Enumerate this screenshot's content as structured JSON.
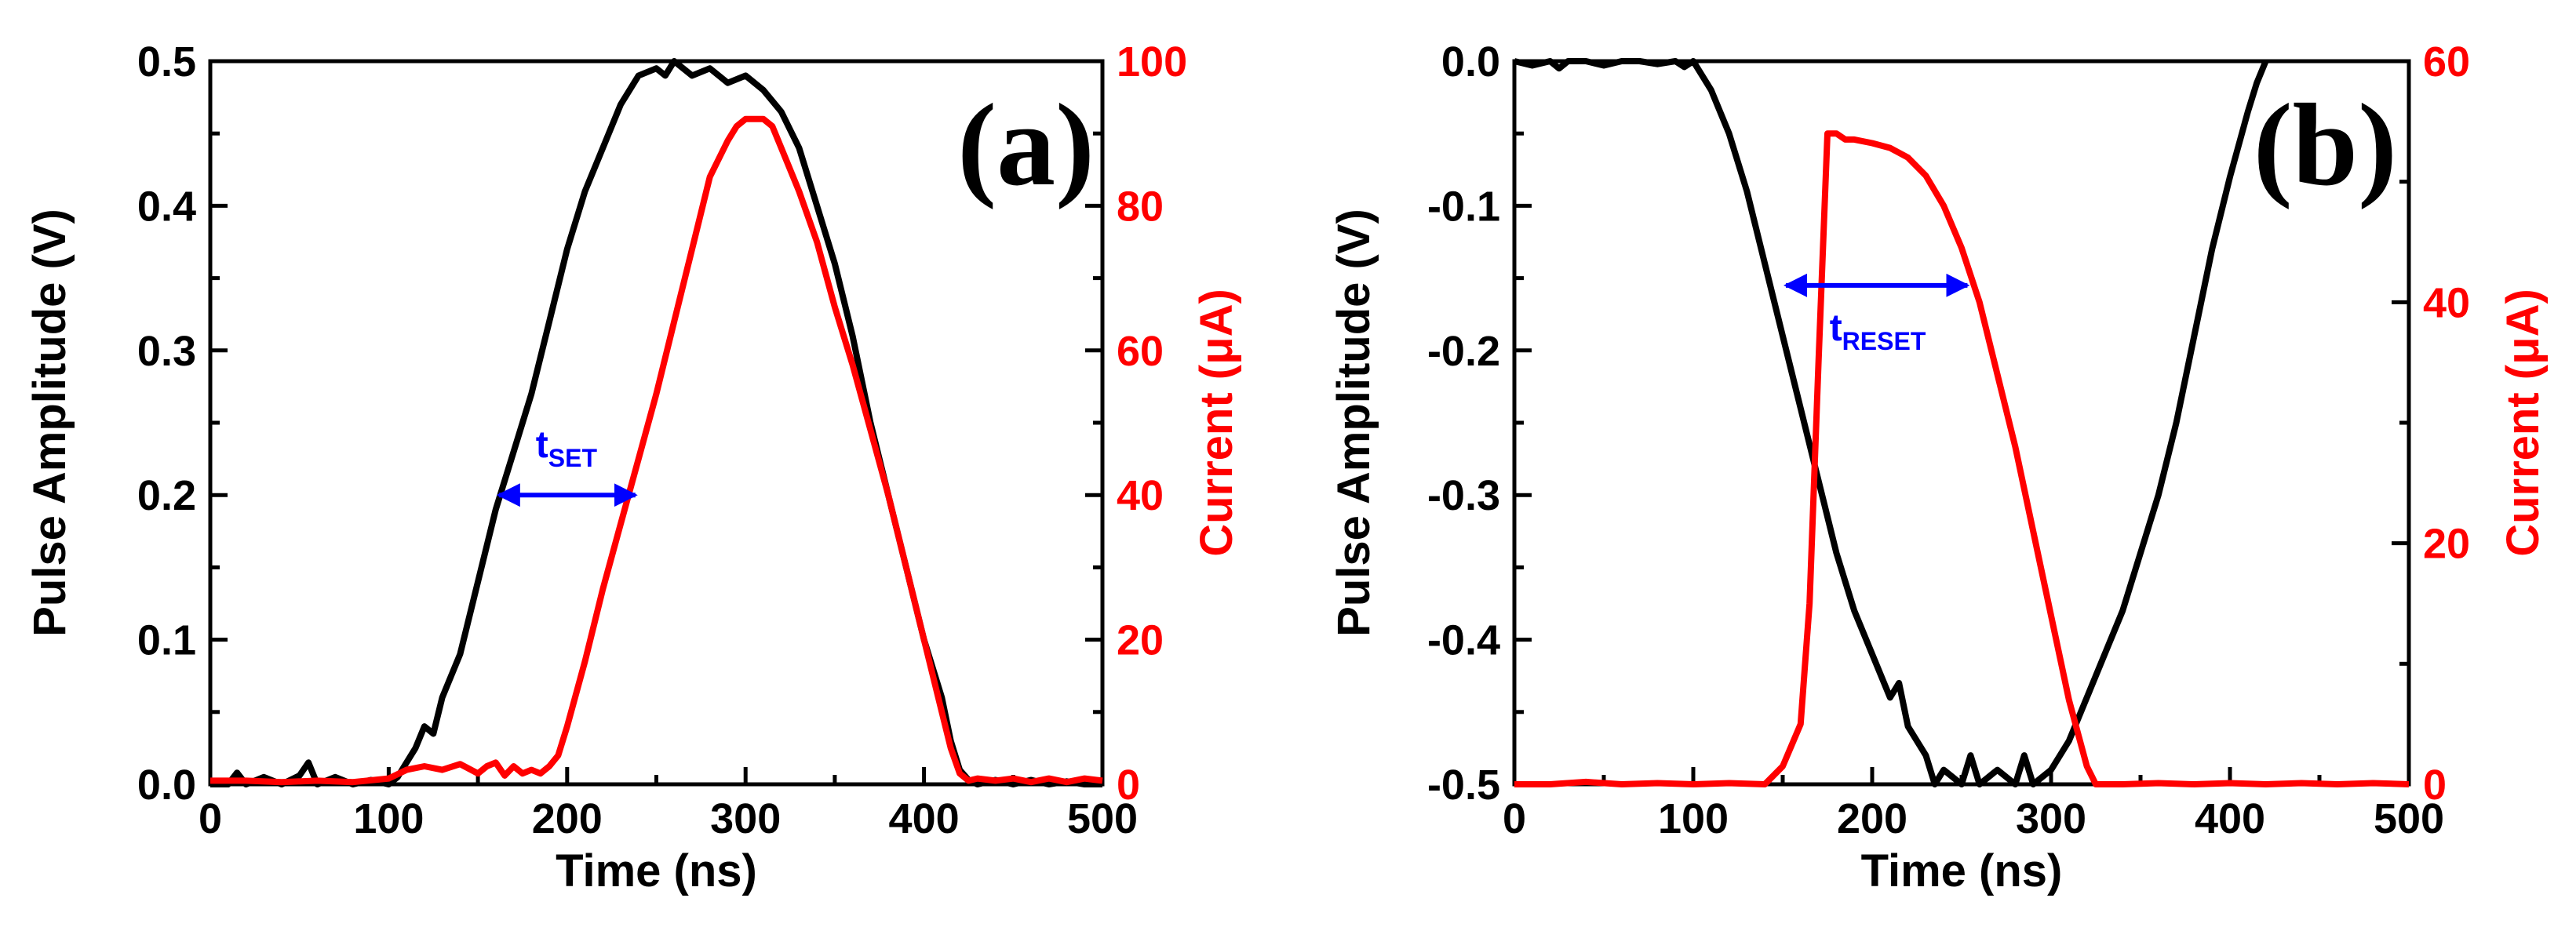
{
  "colors": {
    "voltage": "#000000",
    "current": "#ff0000",
    "annotation": "#0000ff",
    "axis": "#000000"
  },
  "chart_data": [
    {
      "type": "line",
      "panel": "(a)",
      "xlabel": "Time (ns)",
      "ylabel_left": "Pulse Amplitude (V)",
      "ylabel_right": "Current (μA)",
      "xlim": [
        0,
        500
      ],
      "ylim_left": [
        0,
        0.5
      ],
      "ylim_right": [
        0,
        100
      ],
      "x_ticks": [
        "0",
        "100",
        "200",
        "300",
        "400",
        "500"
      ],
      "y_left_ticks": [
        "0.0",
        "0.1",
        "0.2",
        "0.3",
        "0.4",
        "0.5"
      ],
      "y_right_ticks": [
        "0",
        "20",
        "40",
        "60",
        "80",
        "100"
      ],
      "annotation": {
        "text": "t",
        "sub": "SET",
        "x1": 160,
        "x2": 240,
        "y": 0.2
      },
      "series": [
        {
          "name": "Pulse Amplitude",
          "axis": "left",
          "x": [
            0,
            10,
            15,
            20,
            30,
            40,
            50,
            55,
            60,
            70,
            80,
            90,
            100,
            105,
            110,
            115,
            120,
            125,
            130,
            140,
            150,
            160,
            170,
            180,
            190,
            200,
            210,
            220,
            230,
            240,
            250,
            255,
            260,
            270,
            280,
            290,
            300,
            310,
            320,
            330,
            340,
            350,
            360,
            370,
            380,
            390,
            400,
            410,
            415,
            420,
            425,
            430,
            440,
            450,
            460,
            470,
            480,
            490,
            500
          ],
          "y": [
            0.0,
            0.0,
            0.008,
            0.0,
            0.005,
            0.0,
            0.006,
            0.015,
            0.0,
            0.005,
            0.0,
            0.003,
            0.0,
            0.005,
            0.015,
            0.025,
            0.04,
            0.035,
            0.06,
            0.09,
            0.14,
            0.19,
            0.23,
            0.27,
            0.32,
            0.37,
            0.41,
            0.44,
            0.47,
            0.49,
            0.495,
            0.49,
            0.5,
            0.49,
            0.495,
            0.485,
            0.49,
            0.48,
            0.465,
            0.44,
            0.4,
            0.36,
            0.31,
            0.25,
            0.2,
            0.15,
            0.1,
            0.06,
            0.03,
            0.01,
            0.003,
            0.0,
            0.003,
            0.0,
            0.003,
            0.0,
            0.002,
            0.0,
            0.0
          ]
        },
        {
          "name": "Current",
          "axis": "right",
          "x": [
            0,
            20,
            40,
            60,
            80,
            100,
            110,
            120,
            130,
            140,
            150,
            155,
            160,
            165,
            170,
            175,
            180,
            185,
            190,
            195,
            200,
            210,
            220,
            230,
            240,
            250,
            260,
            270,
            280,
            290,
            295,
            300,
            305,
            310,
            315,
            320,
            330,
            340,
            350,
            360,
            370,
            380,
            390,
            400,
            410,
            415,
            420,
            425,
            430,
            440,
            450,
            460,
            470,
            480,
            490,
            500
          ],
          "y": [
            0.5,
            0.5,
            0.3,
            0.5,
            0.3,
            0.8,
            2,
            2.5,
            2,
            2.8,
            1.5,
            2.5,
            3,
            1.2,
            2.5,
            1.5,
            2,
            1.5,
            2.5,
            4,
            8,
            17,
            27,
            36,
            45,
            54,
            64,
            74,
            84,
            89,
            91,
            92,
            92,
            92,
            91,
            88,
            82,
            75,
            66,
            58,
            49,
            40,
            30,
            20,
            10,
            5,
            1.5,
            0.5,
            0.8,
            0.5,
            0.8,
            0.3,
            0.8,
            0.3,
            0.8,
            0.5
          ]
        }
      ]
    },
    {
      "type": "line",
      "panel": "(b)",
      "xlabel": "Time (ns)",
      "ylabel_left": "Pulse Amplitude (V)",
      "ylabel_right": "Current (μA)",
      "xlim": [
        0,
        500
      ],
      "ylim_left": [
        -0.5,
        0.0
      ],
      "ylim_right": [
        0,
        60
      ],
      "x_ticks": [
        "0",
        "100",
        "200",
        "300",
        "400",
        "500"
      ],
      "y_left_ticks": [
        "-0.5",
        "-0.4",
        "-0.3",
        "-0.2",
        "-0.1",
        "0.0"
      ],
      "y_right_ticks": [
        "0",
        "20",
        "40",
        "60"
      ],
      "annotation": {
        "text": "t",
        "sub": "RESET",
        "x1": 150,
        "x2": 255,
        "y": -0.155
      },
      "series": [
        {
          "name": "Pulse Amplitude",
          "axis": "left",
          "x": [
            0,
            10,
            20,
            25,
            30,
            40,
            50,
            60,
            70,
            80,
            90,
            95,
            100,
            110,
            120,
            130,
            140,
            150,
            160,
            170,
            180,
            190,
            200,
            210,
            215,
            220,
            230,
            235,
            240,
            250,
            255,
            260,
            270,
            280,
            285,
            290,
            300,
            310,
            320,
            330,
            340,
            350,
            360,
            370,
            380,
            390,
            400,
            410,
            415,
            420
          ],
          "y": [
            0.0,
            -0.003,
            0.0,
            -0.005,
            0.0,
            0.0,
            -0.003,
            0.0,
            0.0,
            -0.002,
            0.0,
            -0.004,
            0.0,
            -0.02,
            -0.05,
            -0.09,
            -0.14,
            -0.19,
            -0.24,
            -0.29,
            -0.34,
            -0.38,
            -0.41,
            -0.44,
            -0.43,
            -0.46,
            -0.48,
            -0.5,
            -0.49,
            -0.5,
            -0.48,
            -0.5,
            -0.49,
            -0.5,
            -0.48,
            -0.5,
            -0.49,
            -0.47,
            -0.44,
            -0.41,
            -0.38,
            -0.34,
            -0.3,
            -0.25,
            -0.19,
            -0.13,
            -0.08,
            -0.035,
            -0.015,
            0.0
          ]
        },
        {
          "name": "Current",
          "axis": "right",
          "x": [
            0,
            20,
            40,
            60,
            80,
            100,
            120,
            140,
            150,
            160,
            165,
            170,
            175,
            180,
            185,
            190,
            200,
            210,
            220,
            230,
            240,
            250,
            260,
            270,
            280,
            290,
            300,
            310,
            320,
            325,
            330,
            340,
            360,
            380,
            400,
            420,
            440,
            460,
            480,
            500
          ],
          "y": [
            0,
            0,
            0.2,
            0,
            0.1,
            0,
            0.1,
            0,
            1.5,
            5,
            15,
            35,
            54,
            54,
            53.5,
            53.5,
            53.2,
            52.8,
            52,
            50.5,
            48,
            44.5,
            40,
            34,
            28,
            21,
            14,
            7,
            1.5,
            0,
            0,
            0,
            0.1,
            0,
            0.1,
            0,
            0.1,
            0,
            0.1,
            0
          ]
        }
      ]
    }
  ]
}
